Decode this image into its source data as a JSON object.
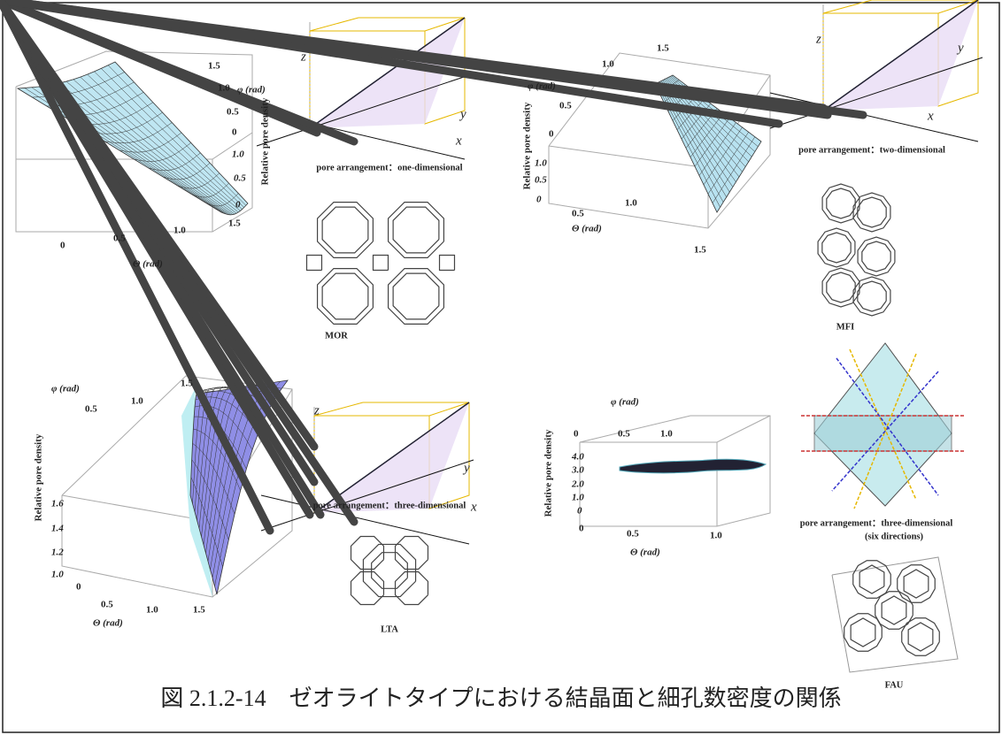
{
  "caption": "図 2.1.2-14　ゼオライトタイプにおける結晶面と細孔数密度の関係",
  "panels": [
    {
      "plot": {
        "z_label": "Relative pore density",
        "phi_label": "φ (rad)",
        "theta_label": "Θ (rad)",
        "phi_ticks": [
          "1.5",
          "1.0",
          "0.5",
          "0"
        ],
        "z_ticks": [
          "1.0",
          "0.5",
          "0"
        ],
        "theta_ticks": [
          "0",
          "0.5",
          "1.0",
          "1.5"
        ]
      },
      "diagram": {
        "axes": [
          "z",
          "y",
          "x"
        ],
        "caption": "pore arrangement：one-dimensional"
      },
      "structure": "MOR"
    },
    {
      "plot": {
        "z_label": "Relative pore density",
        "phi_label": "φ (rad)",
        "theta_label": "Θ (rad)",
        "phi_ticks": [
          "1.5",
          "1.0",
          "0.5",
          "0"
        ],
        "z_ticks": [
          "1.0",
          "0.5",
          "0"
        ],
        "theta_ticks": [
          "0.5",
          "1.0",
          "1.5"
        ]
      },
      "diagram": {
        "axes": [
          "z",
          "y",
          "x"
        ],
        "caption": "pore arrangement：two-dimensional"
      },
      "structure": "MFI"
    },
    {
      "plot": {
        "z_label": "Relative pore density",
        "phi_label": "φ (rad)",
        "theta_label": "Θ (rad)",
        "phi_ticks": [
          "0.5",
          "1.0",
          "1.5"
        ],
        "z_ticks": [
          "1.6",
          "1.4",
          "1.2",
          "1.0"
        ],
        "theta_ticks": [
          "0",
          "0.5",
          "1.0",
          "1.5"
        ]
      },
      "diagram": {
        "axes": [
          "z",
          "y",
          "x"
        ],
        "caption": "pore arrangement：three-dimensional"
      },
      "structure": "LTA"
    },
    {
      "plot": {
        "z_label": "Relative pore density",
        "phi_label": "φ (rad)",
        "theta_label": "Θ (rad)",
        "phi_ticks": [
          "0",
          "0.5",
          "1.0"
        ],
        "z_ticks": [
          "4.0",
          "3.0",
          "2.0",
          "1.0",
          "0"
        ],
        "theta_ticks": [
          "0",
          "0.5",
          "1.0"
        ]
      },
      "diagram": {
        "caption": "pore arrangement：three-dimensional",
        "caption_2": "(six directions)"
      },
      "structure": "FAU"
    }
  ]
}
